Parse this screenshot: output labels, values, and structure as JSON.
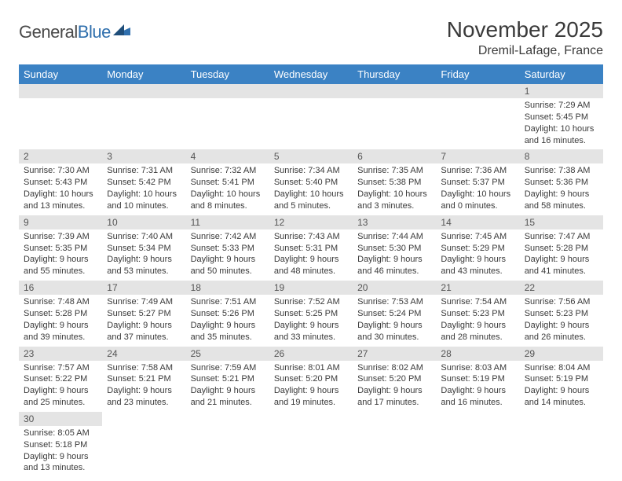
{
  "logo": {
    "text_dark": "General",
    "text_blue": "Blue"
  },
  "header": {
    "month_title": "November 2025",
    "location": "Dremil-Lafage, France"
  },
  "colors": {
    "header_bg": "#3b82c4",
    "header_text": "#ffffff",
    "daynum_bg": "#e4e4e4",
    "text": "#3a3a3a",
    "logo_blue": "#2f6fad"
  },
  "day_labels": [
    "Sunday",
    "Monday",
    "Tuesday",
    "Wednesday",
    "Thursday",
    "Friday",
    "Saturday"
  ],
  "weeks": [
    [
      null,
      null,
      null,
      null,
      null,
      null,
      {
        "n": "1",
        "sr": "Sunrise: 7:29 AM",
        "ss": "Sunset: 5:45 PM",
        "dl": "Daylight: 10 hours and 16 minutes."
      }
    ],
    [
      {
        "n": "2",
        "sr": "Sunrise: 7:30 AM",
        "ss": "Sunset: 5:43 PM",
        "dl": "Daylight: 10 hours and 13 minutes."
      },
      {
        "n": "3",
        "sr": "Sunrise: 7:31 AM",
        "ss": "Sunset: 5:42 PM",
        "dl": "Daylight: 10 hours and 10 minutes."
      },
      {
        "n": "4",
        "sr": "Sunrise: 7:32 AM",
        "ss": "Sunset: 5:41 PM",
        "dl": "Daylight: 10 hours and 8 minutes."
      },
      {
        "n": "5",
        "sr": "Sunrise: 7:34 AM",
        "ss": "Sunset: 5:40 PM",
        "dl": "Daylight: 10 hours and 5 minutes."
      },
      {
        "n": "6",
        "sr": "Sunrise: 7:35 AM",
        "ss": "Sunset: 5:38 PM",
        "dl": "Daylight: 10 hours and 3 minutes."
      },
      {
        "n": "7",
        "sr": "Sunrise: 7:36 AM",
        "ss": "Sunset: 5:37 PM",
        "dl": "Daylight: 10 hours and 0 minutes."
      },
      {
        "n": "8",
        "sr": "Sunrise: 7:38 AM",
        "ss": "Sunset: 5:36 PM",
        "dl": "Daylight: 9 hours and 58 minutes."
      }
    ],
    [
      {
        "n": "9",
        "sr": "Sunrise: 7:39 AM",
        "ss": "Sunset: 5:35 PM",
        "dl": "Daylight: 9 hours and 55 minutes."
      },
      {
        "n": "10",
        "sr": "Sunrise: 7:40 AM",
        "ss": "Sunset: 5:34 PM",
        "dl": "Daylight: 9 hours and 53 minutes."
      },
      {
        "n": "11",
        "sr": "Sunrise: 7:42 AM",
        "ss": "Sunset: 5:33 PM",
        "dl": "Daylight: 9 hours and 50 minutes."
      },
      {
        "n": "12",
        "sr": "Sunrise: 7:43 AM",
        "ss": "Sunset: 5:31 PM",
        "dl": "Daylight: 9 hours and 48 minutes."
      },
      {
        "n": "13",
        "sr": "Sunrise: 7:44 AM",
        "ss": "Sunset: 5:30 PM",
        "dl": "Daylight: 9 hours and 46 minutes."
      },
      {
        "n": "14",
        "sr": "Sunrise: 7:45 AM",
        "ss": "Sunset: 5:29 PM",
        "dl": "Daylight: 9 hours and 43 minutes."
      },
      {
        "n": "15",
        "sr": "Sunrise: 7:47 AM",
        "ss": "Sunset: 5:28 PM",
        "dl": "Daylight: 9 hours and 41 minutes."
      }
    ],
    [
      {
        "n": "16",
        "sr": "Sunrise: 7:48 AM",
        "ss": "Sunset: 5:28 PM",
        "dl": "Daylight: 9 hours and 39 minutes."
      },
      {
        "n": "17",
        "sr": "Sunrise: 7:49 AM",
        "ss": "Sunset: 5:27 PM",
        "dl": "Daylight: 9 hours and 37 minutes."
      },
      {
        "n": "18",
        "sr": "Sunrise: 7:51 AM",
        "ss": "Sunset: 5:26 PM",
        "dl": "Daylight: 9 hours and 35 minutes."
      },
      {
        "n": "19",
        "sr": "Sunrise: 7:52 AM",
        "ss": "Sunset: 5:25 PM",
        "dl": "Daylight: 9 hours and 33 minutes."
      },
      {
        "n": "20",
        "sr": "Sunrise: 7:53 AM",
        "ss": "Sunset: 5:24 PM",
        "dl": "Daylight: 9 hours and 30 minutes."
      },
      {
        "n": "21",
        "sr": "Sunrise: 7:54 AM",
        "ss": "Sunset: 5:23 PM",
        "dl": "Daylight: 9 hours and 28 minutes."
      },
      {
        "n": "22",
        "sr": "Sunrise: 7:56 AM",
        "ss": "Sunset: 5:23 PM",
        "dl": "Daylight: 9 hours and 26 minutes."
      }
    ],
    [
      {
        "n": "23",
        "sr": "Sunrise: 7:57 AM",
        "ss": "Sunset: 5:22 PM",
        "dl": "Daylight: 9 hours and 25 minutes."
      },
      {
        "n": "24",
        "sr": "Sunrise: 7:58 AM",
        "ss": "Sunset: 5:21 PM",
        "dl": "Daylight: 9 hours and 23 minutes."
      },
      {
        "n": "25",
        "sr": "Sunrise: 7:59 AM",
        "ss": "Sunset: 5:21 PM",
        "dl": "Daylight: 9 hours and 21 minutes."
      },
      {
        "n": "26",
        "sr": "Sunrise: 8:01 AM",
        "ss": "Sunset: 5:20 PM",
        "dl": "Daylight: 9 hours and 19 minutes."
      },
      {
        "n": "27",
        "sr": "Sunrise: 8:02 AM",
        "ss": "Sunset: 5:20 PM",
        "dl": "Daylight: 9 hours and 17 minutes."
      },
      {
        "n": "28",
        "sr": "Sunrise: 8:03 AM",
        "ss": "Sunset: 5:19 PM",
        "dl": "Daylight: 9 hours and 16 minutes."
      },
      {
        "n": "29",
        "sr": "Sunrise: 8:04 AM",
        "ss": "Sunset: 5:19 PM",
        "dl": "Daylight: 9 hours and 14 minutes."
      }
    ],
    [
      {
        "n": "30",
        "sr": "Sunrise: 8:05 AM",
        "ss": "Sunset: 5:18 PM",
        "dl": "Daylight: 9 hours and 13 minutes."
      },
      null,
      null,
      null,
      null,
      null,
      null
    ]
  ]
}
